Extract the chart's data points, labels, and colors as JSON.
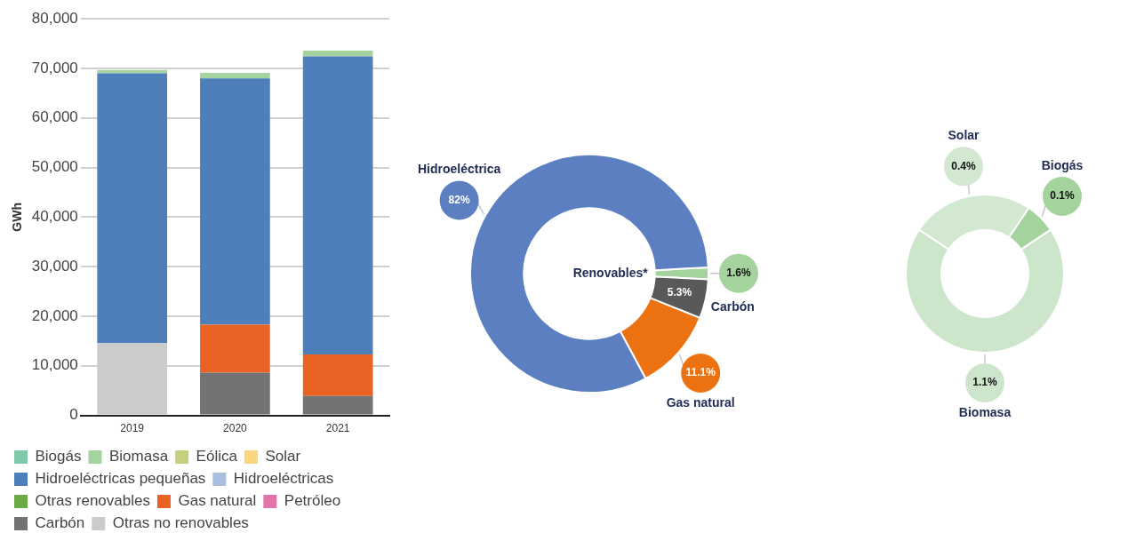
{
  "chart_data": [
    {
      "type": "bar",
      "stacked": true,
      "categories": [
        "2019",
        "2020",
        "2021"
      ],
      "ylabel": "GWh",
      "ylim": [
        0,
        80000
      ],
      "yticks": [
        0,
        {
          "value": 10000,
          "label": "10,000"
        },
        {
          "value": 20000,
          "label": "20,000"
        },
        {
          "value": 30000,
          "label": "30,000"
        },
        {
          "value": 40000,
          "label": "40,000"
        },
        {
          "value": 50000,
          "label": "50,000"
        },
        {
          "value": 60000,
          "label": "60,000"
        },
        {
          "value": 70000,
          "label": "70,000"
        },
        {
          "value": 80000,
          "label": "80,000"
        }
      ],
      "grid": "y",
      "legend": "bottom",
      "series": [
        {
          "name": "Otras no renovables",
          "color": "#cbcbcb",
          "values": [
            14600,
            0,
            0
          ]
        },
        {
          "name": "Carbón",
          "color": "#737373",
          "values": [
            0,
            8600,
            3900
          ]
        },
        {
          "name": "Petróleo",
          "color": "#e075a8",
          "values": [
            0,
            0,
            0
          ]
        },
        {
          "name": "Gas natural",
          "color": "#e96424",
          "values": [
            0,
            9700,
            8400
          ]
        },
        {
          "name": "Otras renovables",
          "color": "#6aab46",
          "values": [
            0,
            0,
            0
          ]
        },
        {
          "name": "Hidroeléctricas",
          "color": "#a8bfe0",
          "values": [
            0,
            0,
            0
          ]
        },
        {
          "name": "Hidroeléctricas pequeñas",
          "color": "#4f7fbb",
          "values": [
            54400,
            49700,
            60100
          ]
        },
        {
          "name": "Solar",
          "color": "#f9d57f",
          "values": [
            0,
            0,
            0
          ]
        },
        {
          "name": "Eólica",
          "color": "#c5cf7e",
          "values": [
            0,
            0,
            0
          ]
        },
        {
          "name": "Biomasa",
          "color": "#a5d3a0",
          "values": [
            700,
            1100,
            1200
          ]
        },
        {
          "name": "Biogás",
          "color": "#7fc8a9",
          "values": [
            0,
            0,
            0
          ]
        }
      ]
    },
    {
      "type": "donut",
      "categories": [
        "Renovables*",
        "Carbón",
        "Gas natural",
        "Hidroeléctrica"
      ],
      "values": [
        1.6,
        5.3,
        11.1,
        82
      ],
      "value_labels": [
        "1.6%",
        "5.3%",
        "11.1%",
        "82%"
      ],
      "colors": [
        "#a4d39e",
        "#595959",
        "#ec7211",
        "#5b7fc1"
      ]
    },
    {
      "type": "donut",
      "categories": [
        "Solar",
        "Biogás",
        "Biomasa"
      ],
      "values": [
        0.4,
        0.1,
        1.1
      ],
      "value_labels": [
        "0.4%",
        "0.1%",
        "1.1%"
      ],
      "colors": [
        "#d3e8d1",
        "#a4d39e",
        "#cde6cb"
      ]
    }
  ]
}
